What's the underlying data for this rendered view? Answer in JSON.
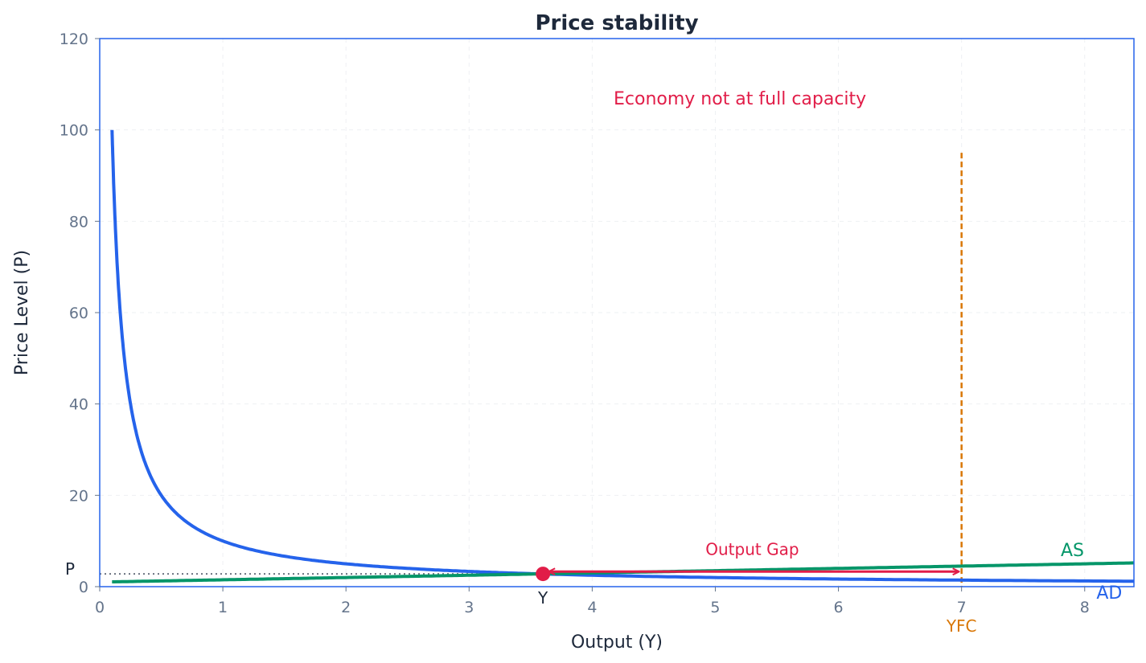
{
  "chart_data": {
    "type": "line",
    "title": "Price stability",
    "xlabel": "Output (Y)",
    "ylabel": "Price Level (P)",
    "xlim": [
      0,
      8.4
    ],
    "ylim": [
      0,
      120
    ],
    "xticks": [
      "0",
      "1",
      "2",
      "3",
      "4",
      "5",
      "6",
      "7",
      "8"
    ],
    "yticks": [
      "0",
      "20",
      "40",
      "60",
      "80",
      "100",
      "120"
    ],
    "grid": true,
    "series": [
      {
        "name": "AD",
        "color": "#2563eb",
        "function": "P = 10 / Y",
        "x_range": [
          0.1,
          8.4
        ]
      },
      {
        "name": "AS",
        "color": "#059669",
        "function": "P = 1 + 0.5 Y",
        "x_range": [
          0.1,
          8.4
        ]
      }
    ],
    "equilibrium": {
      "x": 3.6,
      "y": 2.8,
      "x_label": "Y",
      "y_label": "P",
      "color": "#e11d48"
    },
    "full_capacity": {
      "x": 7,
      "label": "YFC",
      "y_top": 95,
      "color": "#d97706"
    },
    "annotations": [
      {
        "text": "Economy not at full capacity",
        "x": 5.2,
        "y": 107,
        "color": "#e11d48"
      },
      {
        "text": "Output Gap",
        "x": 5.3,
        "y": 5.5,
        "color": "#e11d48",
        "arrow_from": 3.6,
        "arrow_to": 7,
        "arrow_y": 3.3
      }
    ]
  }
}
